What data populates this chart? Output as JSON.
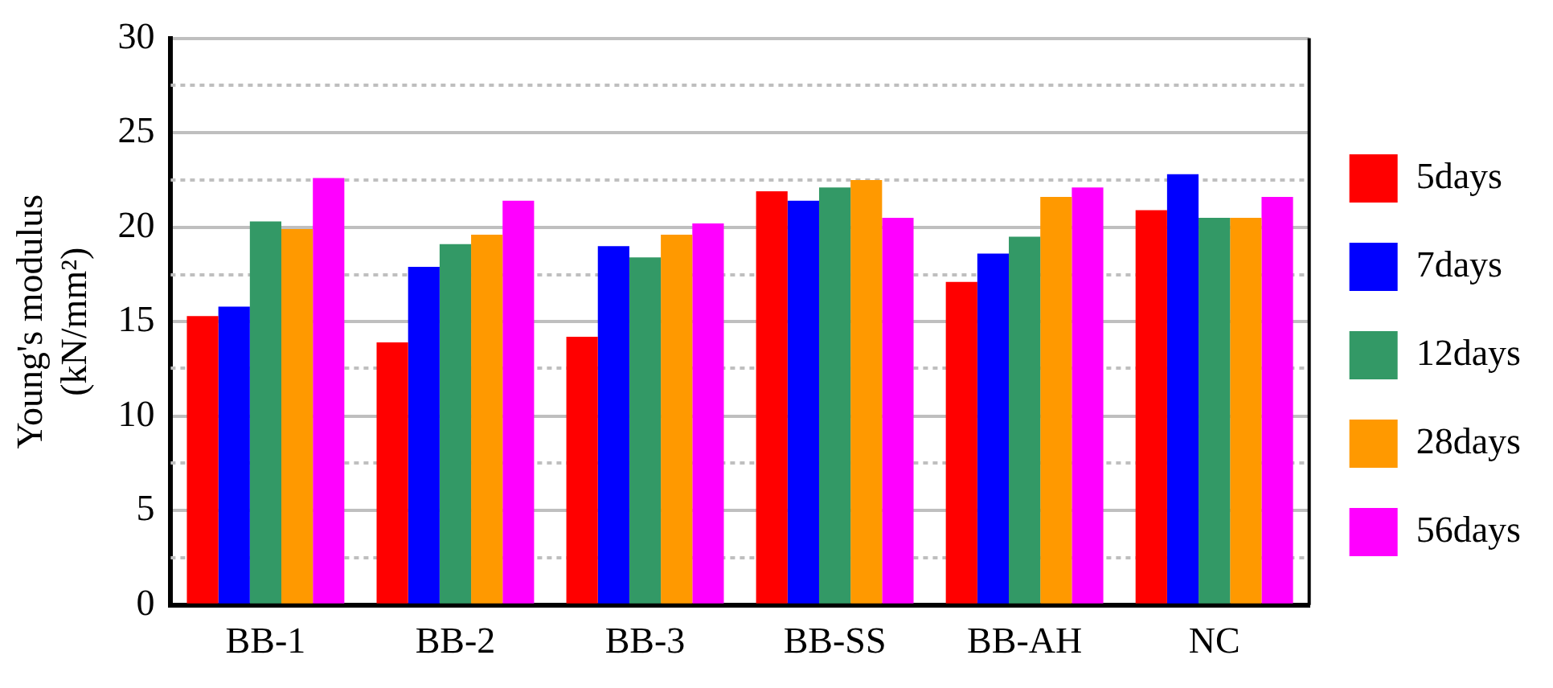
{
  "chart_data": {
    "type": "bar",
    "ylabel": "Young's modulus\n(kN/mm²)",
    "categories": [
      "BB-1",
      "BB-2",
      "BB-3",
      "BB-SS",
      "BB-AH",
      "NC"
    ],
    "series": [
      {
        "name": "5days",
        "color": "#ff0000",
        "values": [
          15.3,
          13.9,
          14.2,
          21.9,
          17.1,
          20.9
        ]
      },
      {
        "name": "7days",
        "color": "#0000ff",
        "values": [
          15.8,
          17.9,
          19.0,
          21.4,
          18.6,
          22.8
        ]
      },
      {
        "name": "12days",
        "color": "#339966",
        "values": [
          20.3,
          19.1,
          18.4,
          22.1,
          19.5,
          20.5
        ]
      },
      {
        "name": "28days",
        "color": "#ff9900",
        "values": [
          19.9,
          19.6,
          19.6,
          22.5,
          21.6,
          20.5
        ]
      },
      {
        "name": "56days",
        "color": "#ff00ff",
        "values": [
          22.6,
          21.4,
          20.2,
          20.5,
          22.1,
          21.6
        ]
      }
    ],
    "ylim": [
      0,
      30
    ],
    "yticks": [
      0,
      {
        "value": 2.5,
        "label": null
      },
      5,
      {
        "value": 7.5,
        "label": null
      },
      10,
      {
        "value": 12.5,
        "label": null
      },
      15,
      {
        "value": 17.5,
        "label": null
      },
      20,
      {
        "value": 22.5,
        "label": null
      },
      25,
      {
        "value": 27.5,
        "label": null
      },
      30
    ],
    "grid": "y",
    "legend": "right"
  }
}
